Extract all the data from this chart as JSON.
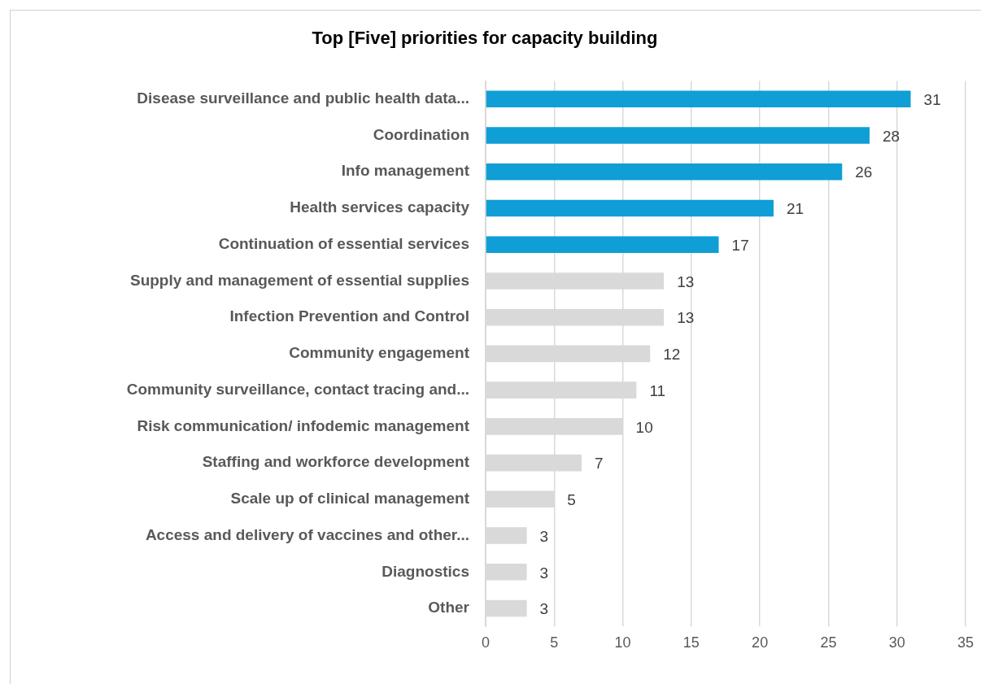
{
  "chart_data": {
    "type": "bar",
    "orientation": "horizontal",
    "title": "Top [Five] priorities for capacity building",
    "categories": [
      "Disease surveillance and public health data...",
      "Coordination",
      "Info management",
      "Health services capacity",
      "Continuation of essential services",
      "Supply and management of essential supplies",
      "Infection Prevention and Control",
      "Community engagement",
      "Community surveillance, contact tracing and...",
      "Risk communication/ infodemic management",
      "Staffing and workforce development",
      "Scale up of clinical management",
      "Access and delivery of vaccines and other...",
      "Diagnostics",
      "Other"
    ],
    "values": [
      31,
      28,
      26,
      21,
      17,
      13,
      13,
      12,
      11,
      10,
      7,
      5,
      3,
      3,
      3
    ],
    "colors": [
      "#0f9ed5",
      "#0f9ed5",
      "#0f9ed5",
      "#0f9ed5",
      "#0f9ed5",
      "#d9d9d9",
      "#d9d9d9",
      "#d9d9d9",
      "#d9d9d9",
      "#d9d9d9",
      "#d9d9d9",
      "#d9d9d9",
      "#d9d9d9",
      "#d9d9d9",
      "#d9d9d9"
    ],
    "xlim": [
      0,
      35
    ],
    "xticks": [
      0,
      5,
      10,
      15,
      20,
      25,
      30,
      35
    ],
    "grid": "x",
    "data_labels": true,
    "legend": false
  }
}
